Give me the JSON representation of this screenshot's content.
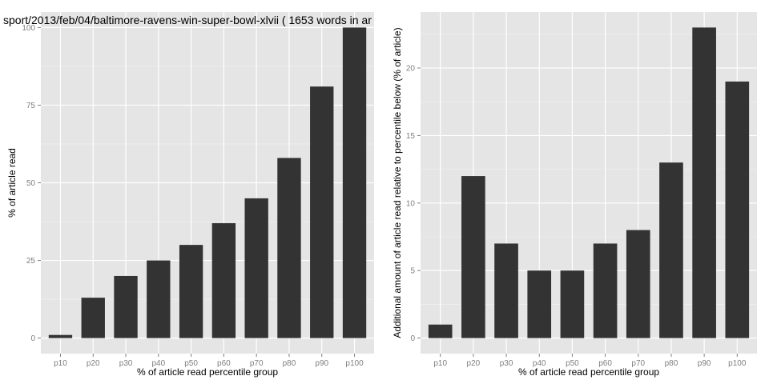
{
  "chart_data": [
    {
      "type": "bar",
      "title": "sport/2013/feb/04/baltimore-ravens-win-super-bowl-xlvii ( 1653 words in ar",
      "xlabel": "% of article read percentile group",
      "ylabel": "% of article read",
      "categories": [
        "p10",
        "p20",
        "p30",
        "p40",
        "p50",
        "p60",
        "p70",
        "p80",
        "p90",
        "p100"
      ],
      "values": [
        1,
        13,
        20,
        25,
        30,
        37,
        45,
        58,
        81,
        100
      ],
      "ylim": [
        -5,
        105
      ],
      "yticks": [
        "0",
        "25",
        "50",
        "75",
        "100"
      ],
      "grid": true,
      "legend": "none"
    },
    {
      "type": "bar",
      "title": "",
      "xlabel": "% of article read percentile group",
      "ylabel": "Additional amount of article read relative to percentile below (% of article)",
      "categories": [
        "p10",
        "p20",
        "p30",
        "p40",
        "p50",
        "p60",
        "p70",
        "p80",
        "p90",
        "p100"
      ],
      "values": [
        1,
        12,
        7,
        5,
        5,
        7,
        8,
        13,
        23,
        19
      ],
      "ylim": [
        -1.15,
        24.15
      ],
      "yticks": [
        "0",
        "5",
        "10",
        "15",
        "20"
      ],
      "grid": true,
      "legend": "none"
    }
  ]
}
